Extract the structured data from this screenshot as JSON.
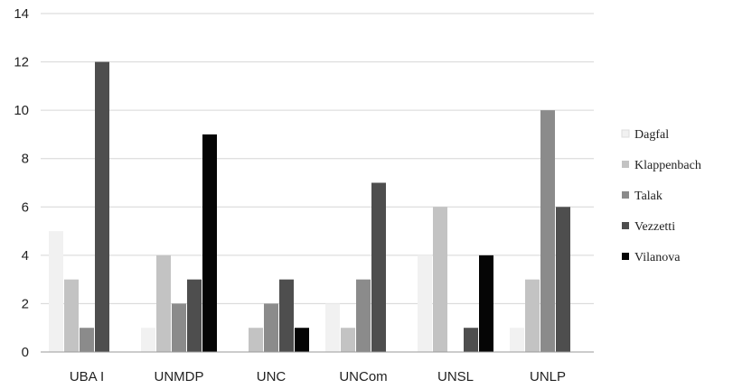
{
  "chart_data": {
    "type": "bar",
    "title": "",
    "xlabel": "",
    "ylabel": "",
    "ylim": [
      0,
      14
    ],
    "yticks": [
      0,
      2,
      4,
      6,
      8,
      10,
      12,
      14
    ],
    "grid": true,
    "legend_position": "right",
    "categories": [
      "UBA I",
      "UNMDP",
      "UNC",
      "UNCom",
      "UNSL",
      "UNLP"
    ],
    "series": [
      {
        "name": "Dagfal",
        "color": "#f1f1f1",
        "values": [
          5,
          1,
          0,
          2,
          4,
          1
        ]
      },
      {
        "name": "Klappenbach",
        "color": "#c3c3c3",
        "values": [
          3,
          4,
          1,
          1,
          6,
          3
        ]
      },
      {
        "name": "Talak",
        "color": "#8b8b8b",
        "values": [
          1,
          2,
          2,
          3,
          0,
          10
        ]
      },
      {
        "name": "Vezzetti",
        "color": "#4e4e4e",
        "values": [
          12,
          3,
          3,
          7,
          1,
          6
        ]
      },
      {
        "name": "Vilanova",
        "color": "#050505",
        "values": [
          0,
          9,
          1,
          0,
          4,
          0
        ]
      }
    ]
  }
}
